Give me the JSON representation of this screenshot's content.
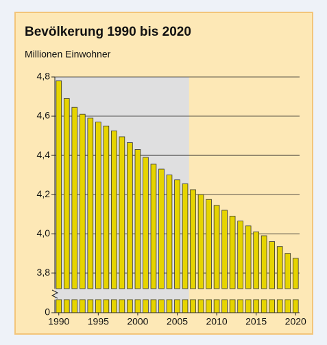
{
  "chart_data": {
    "type": "bar",
    "title": "Bevölkerung 1990 bis 2020",
    "subtitle": "Millionen Einwohner",
    "x": [
      1990,
      1991,
      1992,
      1993,
      1994,
      1995,
      1996,
      1997,
      1998,
      1999,
      2000,
      2001,
      2002,
      2003,
      2004,
      2005,
      2006,
      2007,
      2008,
      2009,
      2010,
      2011,
      2012,
      2013,
      2014,
      2015,
      2016,
      2017,
      2018,
      2019,
      2020
    ],
    "values": [
      4.78,
      4.69,
      4.645,
      4.61,
      4.59,
      4.57,
      4.55,
      4.525,
      4.495,
      4.465,
      4.43,
      4.39,
      4.355,
      4.33,
      4.3,
      4.275,
      4.255,
      4.225,
      4.2,
      4.175,
      4.145,
      4.12,
      4.09,
      4.065,
      4.04,
      4.01,
      3.99,
      3.96,
      3.935,
      3.9,
      3.875
    ],
    "color": "#e6d400",
    "xlim": [
      1989.5,
      2020.5
    ],
    "xticks": [
      1990,
      1995,
      2000,
      2005,
      2010,
      2015,
      2020
    ],
    "ylim": [
      0,
      4.8
    ],
    "axis_break": [
      0.1,
      3.72
    ],
    "yticks": [
      {
        "value": 0,
        "label": "0"
      },
      {
        "value": 3.8,
        "label": "3,8"
      },
      {
        "value": 4.0,
        "label": "4,0"
      },
      {
        "value": 4.2,
        "label": "4,2"
      },
      {
        "value": 4.4,
        "label": "4,4"
      },
      {
        "value": 4.6,
        "label": "4,6"
      },
      {
        "value": 4.8,
        "label": "4,8"
      }
    ],
    "grid": true,
    "shade": [
      1989.5,
      2006.5
    ]
  }
}
